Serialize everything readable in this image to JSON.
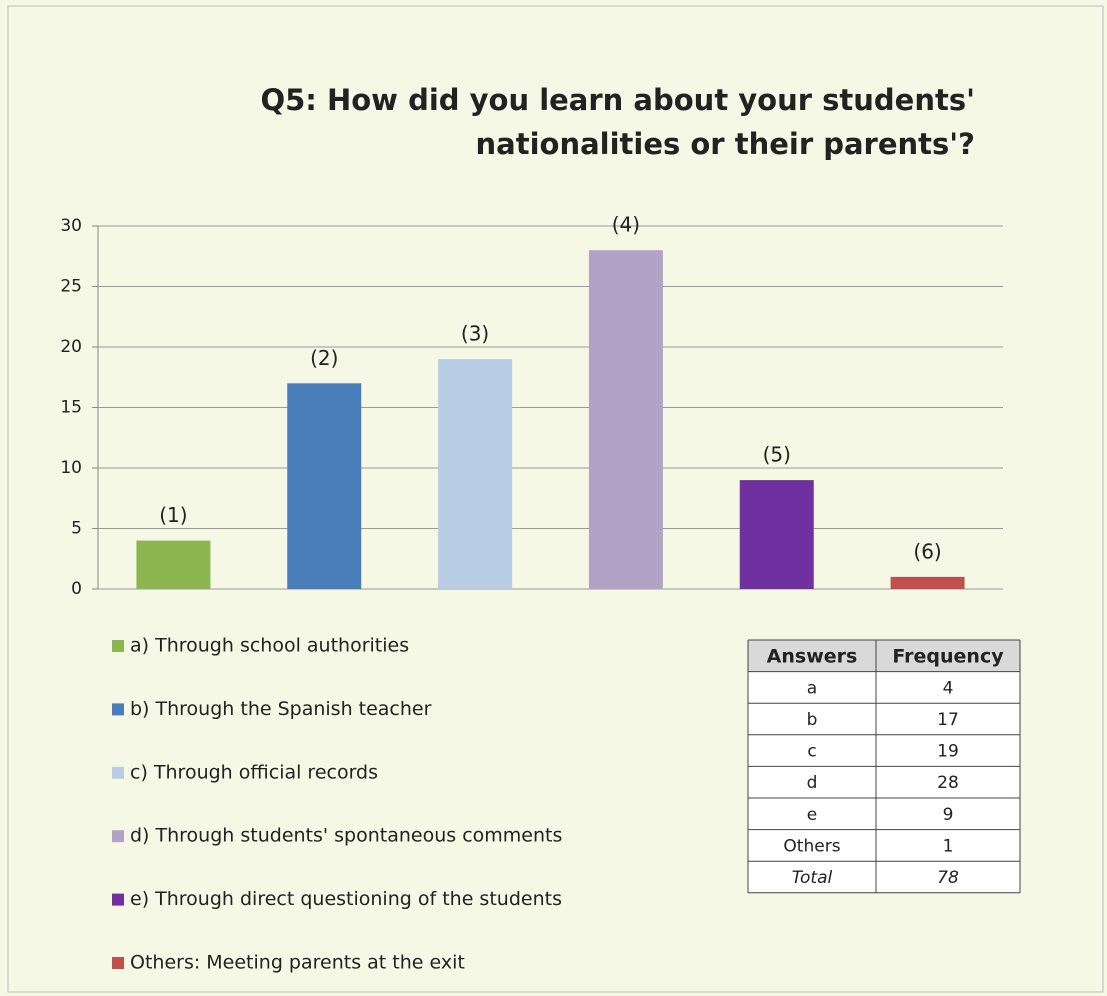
{
  "chart_data": {
    "type": "bar",
    "title": [
      "Q5: How did you learn about your students'",
      "nationalities or their parents'?"
    ],
    "categories": [
      "(1)",
      "(2)",
      "(3)",
      "(4)",
      "(5)",
      "(6)"
    ],
    "values": [
      4,
      17,
      19,
      28,
      9,
      1
    ],
    "colors": [
      "#8db653",
      "#4a7ebb",
      "#b8cce4",
      "#b3a2c7",
      "#7030a0",
      "#c0504d"
    ],
    "legend": [
      "a) Through school authorities",
      "b) Through the Spanish teacher",
      "c) Through official records",
      "d) Through students' spontaneous comments",
      "e) Through direct questioning of the students",
      "Others: Meeting parents at the exit"
    ],
    "ylim": [
      0,
      30
    ],
    "yticks": [
      0,
      5,
      10,
      15,
      20,
      25,
      30
    ],
    "grid": true
  },
  "table": {
    "header": [
      "Answers",
      "Frequency"
    ],
    "rows": [
      [
        "a",
        4
      ],
      [
        "b",
        17
      ],
      [
        "c",
        19
      ],
      [
        "d",
        28
      ],
      [
        "e",
        9
      ],
      [
        "Others",
        1
      ]
    ],
    "total": [
      "Total",
      78
    ]
  }
}
